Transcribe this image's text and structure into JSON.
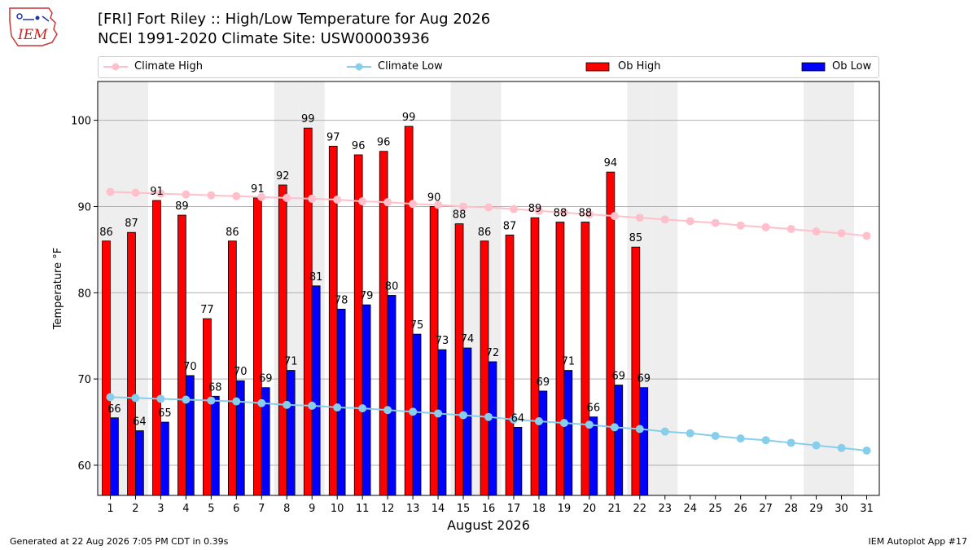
{
  "logo_text": "IEM",
  "title_line1": "[FRI] Fort Riley :: High/Low Temperature for Aug 2026",
  "title_line2": "NCEI 1991-2020 Climate Site: USW00003936",
  "footer_left": "Generated at 22 Aug 2026 7:05 PM CDT in 0.39s",
  "footer_right": "IEM Autoplot App #17",
  "colors": {
    "ob_high": "#ff0000",
    "ob_low": "#0000ff",
    "climate_high": "#ffc0cb",
    "climate_low": "#87ceeb",
    "weekend_shade": "#eeeeee",
    "grid": "#b0b0b0"
  },
  "legend": [
    {
      "label": "Climate High",
      "kind": "line",
      "color": "#ffc0cb"
    },
    {
      "label": "Climate Low",
      "kind": "line",
      "color": "#87ceeb"
    },
    {
      "label": "Ob High",
      "kind": "box",
      "color": "#ff0000"
    },
    {
      "label": "Ob Low",
      "kind": "box",
      "color": "#0000ff"
    }
  ],
  "chart_data": {
    "type": "bar",
    "title": "[FRI] Fort Riley :: High/Low Temperature for Aug 2026",
    "subtitle": "NCEI 1991-2020 Climate Site: USW00003936",
    "xlabel": "August 2026",
    "ylabel": "Temperature °F",
    "ylim": [
      56.5,
      104.5
    ],
    "xlim": [
      0.5,
      31.5
    ],
    "yticks": [
      60,
      70,
      80,
      90,
      100
    ],
    "grid": "horizontal",
    "legend_position": "top",
    "shaded_days": [
      1,
      2,
      8,
      9,
      15,
      16,
      22,
      23,
      29,
      30
    ],
    "days": [
      1,
      2,
      3,
      4,
      5,
      6,
      7,
      8,
      9,
      10,
      11,
      12,
      13,
      14,
      15,
      16,
      17,
      18,
      19,
      20,
      21,
      22,
      23,
      24,
      25,
      26,
      27,
      28,
      29,
      30,
      31
    ],
    "series": [
      {
        "name": "Ob High",
        "kind": "bar",
        "values": [
          86,
          87,
          90.7,
          89,
          77,
          86,
          91,
          92.5,
          99.1,
          97,
          96,
          96.4,
          99.3,
          90,
          88,
          86,
          86.7,
          88.7,
          88.2,
          88.2,
          94,
          85.3
        ],
        "labels": [
          86,
          87,
          91,
          89,
          77,
          86,
          91,
          92,
          99,
          97,
          96,
          96,
          99,
          90,
          88,
          86,
          87,
          89,
          88,
          88,
          94,
          85
        ]
      },
      {
        "name": "Ob Low",
        "kind": "bar",
        "values": [
          65.5,
          64,
          65,
          70.4,
          68,
          69.8,
          69,
          71,
          80.8,
          78.1,
          78.6,
          79.7,
          75.2,
          73.4,
          73.6,
          72,
          64.4,
          68.6,
          71,
          65.6,
          69.3,
          69
        ],
        "labels": [
          66,
          64,
          65,
          70,
          68,
          70,
          69,
          71,
          81,
          78,
          79,
          80,
          75,
          73,
          74,
          72,
          64,
          69,
          71,
          66,
          69,
          69
        ]
      },
      {
        "name": "Climate High",
        "kind": "line",
        "values": [
          91.7,
          91.6,
          91.5,
          91.4,
          91.3,
          91.2,
          91.1,
          91.0,
          90.9,
          90.8,
          90.6,
          90.5,
          90.3,
          90.2,
          90.0,
          89.9,
          89.7,
          89.5,
          89.3,
          89.1,
          88.9,
          88.7,
          88.5,
          88.3,
          88.1,
          87.8,
          87.6,
          87.4,
          87.1,
          86.9,
          86.6
        ]
      },
      {
        "name": "Climate Low",
        "kind": "line",
        "values": [
          67.9,
          67.8,
          67.7,
          67.6,
          67.5,
          67.4,
          67.2,
          67.0,
          66.9,
          66.7,
          66.6,
          66.4,
          66.2,
          66.0,
          65.8,
          65.6,
          65.3,
          65.1,
          64.9,
          64.7,
          64.4,
          64.2,
          63.9,
          63.7,
          63.4,
          63.1,
          62.9,
          62.6,
          62.3,
          62.0,
          61.7
        ]
      }
    ]
  }
}
